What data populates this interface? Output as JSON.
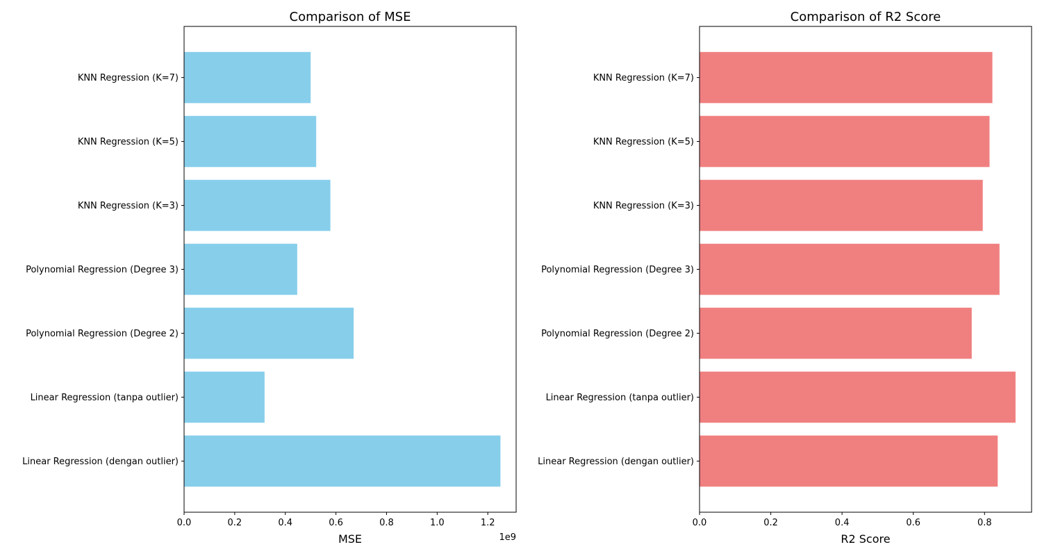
{
  "chart_data": [
    {
      "type": "bar",
      "orientation": "horizontal",
      "title": "Comparison of MSE",
      "xlabel": "MSE",
      "ylabel": "",
      "categories": [
        "Linear Regression (dengan outlier)",
        "Linear Regression (tanpa outlier)",
        "Polynomial Regression (Degree 2)",
        "Polynomial Regression (Degree 3)",
        "KNN Regression (K=3)",
        "KNN Regression (K=5)",
        "KNN Regression (K=7)"
      ],
      "values": [
        1250000000,
        318000000,
        670000000,
        447000000,
        578000000,
        522000000,
        500000000
      ],
      "xlim": [
        0,
        1312000000
      ],
      "xticks": [
        0,
        200000000,
        400000000,
        600000000,
        800000000,
        1000000000,
        1200000000
      ],
      "xtick_labels": [
        "0.0",
        "0.2",
        "0.4",
        "0.6",
        "0.8",
        "1.0",
        "1.2"
      ],
      "offset_text": "1e9",
      "color": "#87ceeb",
      "grid": false
    },
    {
      "type": "bar",
      "orientation": "horizontal",
      "title": "Comparison of R2 Score",
      "xlabel": "R2 Score",
      "ylabel": "",
      "categories": [
        "Linear Regression (dengan outlier)",
        "Linear Regression (tanpa outlier)",
        "Polynomial Regression (Degree 2)",
        "Polynomial Regression (Degree 3)",
        "KNN Regression (K=3)",
        "KNN Regression (K=5)",
        "KNN Regression (K=7)"
      ],
      "values": [
        0.837,
        0.887,
        0.764,
        0.842,
        0.795,
        0.814,
        0.822
      ],
      "xlim": [
        0,
        0.932
      ],
      "xticks": [
        0,
        0.2,
        0.4,
        0.6,
        0.8
      ],
      "xtick_labels": [
        "0.0",
        "0.2",
        "0.4",
        "0.6",
        "0.8"
      ],
      "offset_text": "",
      "color": "#f08080",
      "grid": false
    }
  ]
}
